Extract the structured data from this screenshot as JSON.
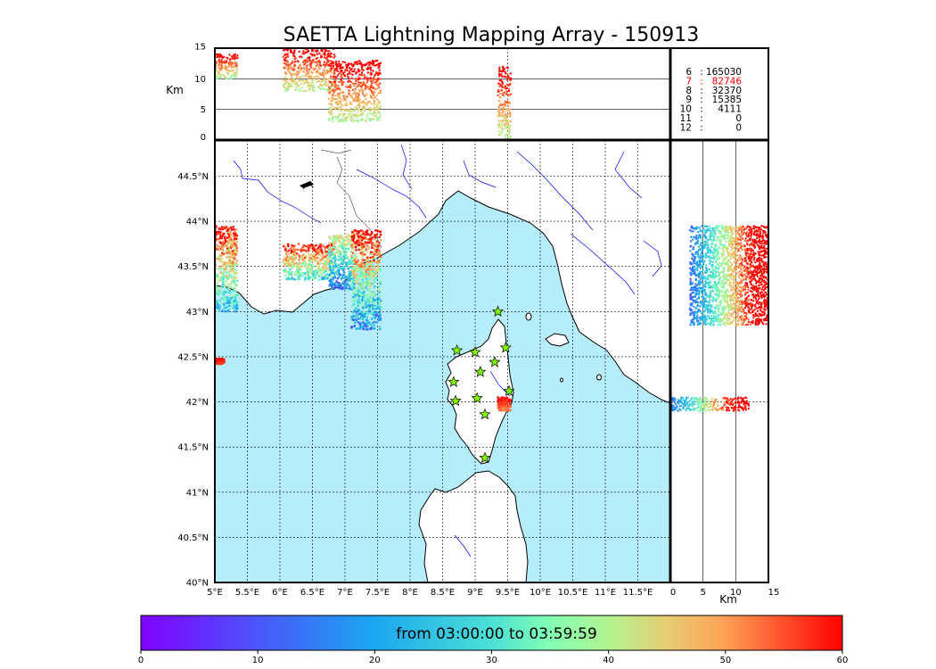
{
  "chart_data": {
    "type": "scatter",
    "title": "SAETTA Lightning Mapping Array - 150913",
    "panels": {
      "map": {
        "xlim_lon": [
          5,
          12.0
        ],
        "ylim_lat": [
          40,
          44.9
        ],
        "x_ticks": [
          "5°E",
          "5.5°E",
          "6°E",
          "6.5°E",
          "7°E",
          "7.5°E",
          "8°E",
          "8.5°E",
          "9°E",
          "9.5°E",
          "10°E",
          "10.5°E",
          "11°E",
          "11.5°E"
        ],
        "y_ticks": [
          "40°N",
          "40.5°N",
          "41°N",
          "41.5°N",
          "42°N",
          "42.5°N",
          "43°N",
          "43.5°N",
          "44°N",
          "44.5°N"
        ],
        "stations_lonlat": [
          [
            9.35,
            43.0
          ],
          [
            8.72,
            42.57
          ],
          [
            9.0,
            42.55
          ],
          [
            9.47,
            42.6
          ],
          [
            9.3,
            42.44
          ],
          [
            9.08,
            42.33
          ],
          [
            8.67,
            42.22
          ],
          [
            9.52,
            42.12
          ],
          [
            8.7,
            42.01
          ],
          [
            9.03,
            42.04
          ],
          [
            9.15,
            41.86
          ],
          [
            9.15,
            41.38
          ]
        ],
        "storm_cells": [
          {
            "lon": [
              5.0,
              5.35
            ],
            "lat": [
              43.0,
              43.95
            ],
            "color_time_min": [
              15,
              60
            ]
          },
          {
            "lon": [
              6.05,
              6.85
            ],
            "lat": [
              43.35,
              43.75
            ],
            "color_time_min": [
              20,
              60
            ]
          },
          {
            "lon": [
              6.75,
              7.15
            ],
            "lat": [
              43.25,
              43.85
            ],
            "color_time_min": [
              5,
              45
            ]
          },
          {
            "lon": [
              7.1,
              7.55
            ],
            "lat": [
              42.8,
              43.9
            ],
            "color_time_min": [
              5,
              60
            ]
          },
          {
            "lon": [
              9.35,
              9.55
            ],
            "lat": [
              41.9,
              42.05
            ],
            "color_time_min": [
              50,
              60
            ]
          },
          {
            "lon": [
              5.0,
              5.15
            ],
            "lat": [
              42.42,
              42.48
            ],
            "color_time_min": [
              55,
              60
            ]
          }
        ]
      },
      "alt_lon": {
        "ylabel": "Km",
        "ylim": [
          0,
          15
        ],
        "y_ticks": [
          "0",
          "5",
          "10",
          "15"
        ],
        "storm_cells": [
          {
            "lon": [
              5.0,
              5.35
            ],
            "alt": [
              10,
              14
            ]
          },
          {
            "lon": [
              6.05,
              6.85
            ],
            "alt": [
              8,
              15
            ]
          },
          {
            "lon": [
              6.75,
              7.55
            ],
            "alt": [
              3,
              13
            ]
          },
          {
            "lon": [
              9.35,
              9.55
            ],
            "alt": [
              0,
              12
            ]
          }
        ]
      },
      "lat_alt": {
        "xlabel": "Km",
        "xlim": [
          0,
          15
        ],
        "x_ticks": [
          "0",
          "5",
          "10",
          "15"
        ],
        "storm_cells": [
          {
            "lat": [
              42.85,
              43.95
            ],
            "alt": [
              3,
              15
            ]
          },
          {
            "lat": [
              41.9,
              42.05
            ],
            "alt": [
              0,
              12
            ]
          }
        ]
      },
      "counts": [
        {
          "label": "6",
          "sep": ":",
          "value": "165030",
          "highlight": false
        },
        {
          "label": "7",
          "sep": ":",
          "value": "82746",
          "highlight": true
        },
        {
          "label": "8",
          "sep": ":",
          "value": "32370",
          "highlight": false
        },
        {
          "label": "9",
          "sep": ":",
          "value": "15385",
          "highlight": false
        },
        {
          "label": "10",
          "sep": ":",
          "value": "4111",
          "highlight": false
        },
        {
          "label": "11",
          "sep": ":",
          "value": "0",
          "highlight": false
        },
        {
          "label": "12",
          "sep": ":",
          "value": "0",
          "highlight": false
        }
      ]
    },
    "colorbar": {
      "label": "from 03:00:00 to 03:59:59",
      "range": [
        0,
        60
      ],
      "ticks": [
        "0",
        "10",
        "20",
        "30",
        "40",
        "50",
        "60"
      ]
    },
    "colors": {
      "sea": "#b6edfb",
      "land": "#ffffff",
      "river": "#0000ff",
      "grid": "#000000",
      "station": "#80ff00",
      "highlight_count": "#ff0000"
    }
  }
}
